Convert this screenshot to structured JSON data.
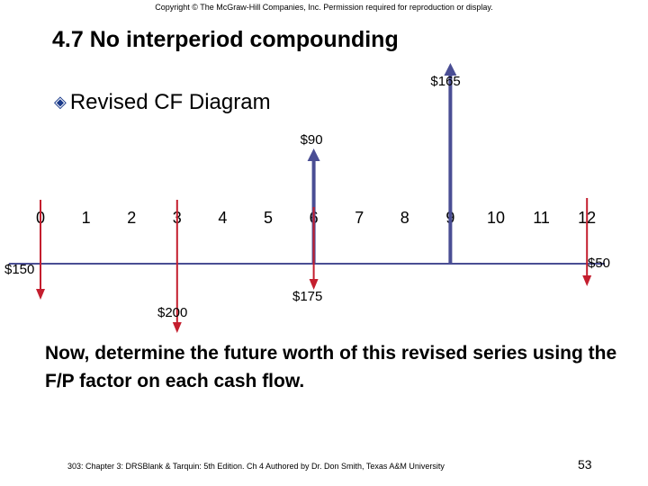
{
  "copyright": "Copyright © The McGraw-Hill Companies, Inc. Permission required for reproduction or display.",
  "title": "4.7 No interperiod compounding",
  "bullet": "Revised CF Diagram",
  "diagram": {
    "periods": [
      "0",
      "1",
      "2",
      "3",
      "4",
      "5",
      "6",
      "7",
      "8",
      "9",
      "10",
      "11",
      "12"
    ],
    "cash_flows": [
      {
        "period": 0,
        "label": "$150",
        "direction": "down",
        "color": "#c41e2e"
      },
      {
        "period": 3,
        "label": "$200",
        "direction": "down",
        "color": "#c41e2e"
      },
      {
        "period": 6,
        "label": "$90",
        "direction": "up",
        "color": "#4a4e94"
      },
      {
        "period": 6,
        "label": "$175",
        "direction": "down",
        "color": "#c41e2e"
      },
      {
        "period": 9,
        "label": "$165",
        "direction": "up",
        "color": "#4a4e94"
      },
      {
        "period": 12,
        "label": "$50",
        "direction": "down",
        "color": "#c41e2e"
      }
    ],
    "axis_color": "#4a4e94"
  },
  "body_text": "Now, determine the future worth of this revised series using the F/P factor on each cash flow.",
  "footer": "303: Chapter 3: DRSBlank & Tarquin: 5th Edition. Ch 4 Authored by Dr. Don Smith, Texas A&M University",
  "page_number": "53"
}
